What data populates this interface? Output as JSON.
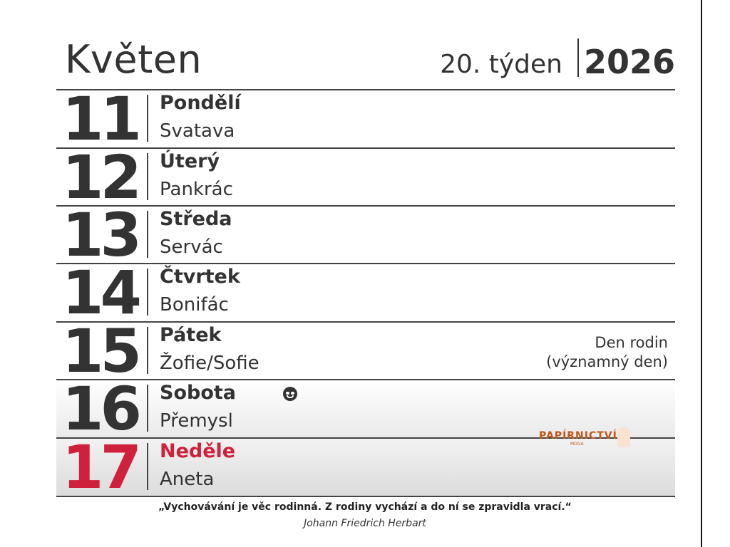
{
  "header": {
    "month": "Květen",
    "week": "20. týden",
    "year": "2026"
  },
  "days": [
    {
      "number": "11",
      "weekday": "Pondělí",
      "nameday": "Svatava"
    },
    {
      "number": "12",
      "weekday": "Úterý",
      "nameday": "Pankrác"
    },
    {
      "number": "13",
      "weekday": "Středa",
      "nameday": "Servác"
    },
    {
      "number": "14",
      "weekday": "Čtvrtek",
      "nameday": "Bonifác"
    },
    {
      "number": "15",
      "weekday": "Pátek",
      "nameday": "Žofie/Sofie",
      "note_line1": "Den rodin",
      "note_line2": "(významný den)"
    },
    {
      "number": "16",
      "weekday": "Sobota",
      "nameday": "Přemysl",
      "icon": "smiley-icon"
    },
    {
      "number": "17",
      "weekday": "Neděle",
      "nameday": "Aneta"
    }
  ],
  "logo": {
    "text": "PAPÍRNICTVÍ",
    "sub": "MOGA"
  },
  "footer": {
    "quote": "„Vychovávání je věc rodinná. Z rodiny vychází a do ní se zpravidla vrací.“",
    "author": "Johann Friedrich Herbart"
  },
  "colors": {
    "text": "#333333",
    "sunday": "#d0213c",
    "logo": "#c2571a"
  }
}
